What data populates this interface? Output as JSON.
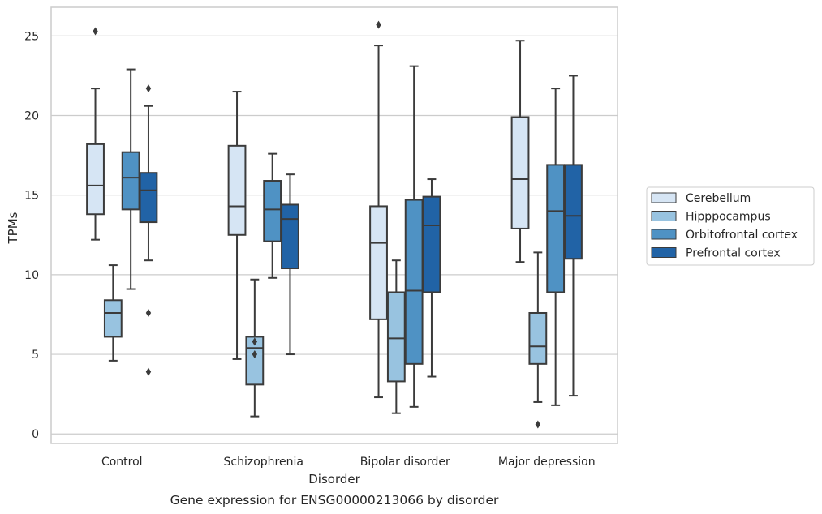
{
  "caption": "Gene expression for ENSG00000213066 by disorder",
  "chart_data": {
    "type": "box",
    "xlabel": "Disorder",
    "ylabel": "TPMs",
    "ylim": [
      -0.6,
      26.8
    ],
    "yticks": [
      0,
      5,
      10,
      15,
      20,
      25
    ],
    "grid": "horizontal",
    "legend_position": "right",
    "categories": [
      "Control",
      "Schizophrenia",
      "Bipolar disorder",
      "Major depression"
    ],
    "series": [
      {
        "name": "Cerebellum",
        "color": "#d6e5f4",
        "boxes": [
          {
            "whisker_low": 12.2,
            "q1": 13.8,
            "median": 15.6,
            "q3": 18.2,
            "whisker_high": 21.7,
            "outliers": [
              25.3
            ]
          },
          {
            "whisker_low": 4.7,
            "q1": 12.5,
            "median": 14.3,
            "q3": 18.1,
            "whisker_high": 21.5,
            "outliers": []
          },
          {
            "whisker_low": 2.3,
            "q1": 7.2,
            "median": 12.0,
            "q3": 14.3,
            "whisker_high": 24.4,
            "outliers": [
              25.7
            ]
          },
          {
            "whisker_low": 10.8,
            "q1": 12.9,
            "median": 16.0,
            "q3": 19.9,
            "whisker_high": 24.7,
            "outliers": []
          }
        ]
      },
      {
        "name": "Hipppocampus",
        "color": "#98c3e0",
        "boxes": [
          {
            "whisker_low": 4.6,
            "q1": 6.1,
            "median": 7.6,
            "q3": 8.4,
            "whisker_high": 10.6,
            "outliers": []
          },
          {
            "whisker_low": 1.1,
            "q1": 3.1,
            "median": 5.4,
            "q3": 6.1,
            "whisker_high": 9.7,
            "outliers": [
              5.8,
              5.0
            ]
          },
          {
            "whisker_low": 1.3,
            "q1": 3.3,
            "median": 6.0,
            "q3": 8.9,
            "whisker_high": 10.9,
            "outliers": []
          },
          {
            "whisker_low": 2.0,
            "q1": 4.4,
            "median": 5.5,
            "q3": 7.6,
            "whisker_high": 11.4,
            "outliers": [
              0.6
            ]
          }
        ]
      },
      {
        "name": "Orbitofrontal cortex",
        "color": "#4f92c4",
        "boxes": [
          {
            "whisker_low": 9.1,
            "q1": 14.1,
            "median": 16.1,
            "q3": 17.7,
            "whisker_high": 22.9,
            "outliers": []
          },
          {
            "whisker_low": 9.8,
            "q1": 12.1,
            "median": 14.1,
            "q3": 15.9,
            "whisker_high": 17.6,
            "outliers": []
          },
          {
            "whisker_low": 1.7,
            "q1": 4.4,
            "median": 9.0,
            "q3": 14.7,
            "whisker_high": 23.1,
            "outliers": []
          },
          {
            "whisker_low": 1.8,
            "q1": 8.9,
            "median": 14.0,
            "q3": 16.9,
            "whisker_high": 21.7,
            "outliers": []
          }
        ]
      },
      {
        "name": "Prefrontal cortex",
        "color": "#2163a6",
        "boxes": [
          {
            "whisker_low": 10.9,
            "q1": 13.3,
            "median": 15.3,
            "q3": 16.4,
            "whisker_high": 20.6,
            "outliers": [
              21.7,
              7.6,
              3.9
            ]
          },
          {
            "whisker_low": 5.0,
            "q1": 10.4,
            "median": 13.5,
            "q3": 14.4,
            "whisker_high": 16.3,
            "outliers": []
          },
          {
            "whisker_low": 3.6,
            "q1": 8.9,
            "median": 13.1,
            "q3": 14.9,
            "whisker_high": 16.0,
            "outliers": []
          },
          {
            "whisker_low": 2.4,
            "q1": 11.0,
            "median": 13.7,
            "q3": 16.9,
            "whisker_high": 22.5,
            "outliers": []
          }
        ]
      }
    ]
  }
}
